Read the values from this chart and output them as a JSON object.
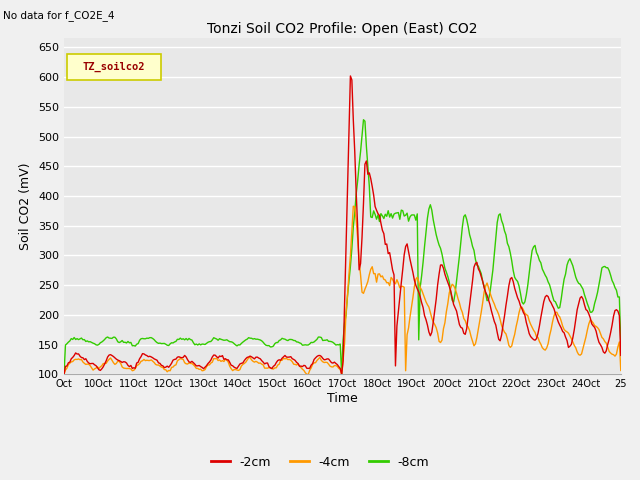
{
  "title": "Tonzi Soil CO2 Profile: Open (East) CO2",
  "subtitle": "No data for f_CO2E_4",
  "ylabel": "Soil CO2 (mV)",
  "xlabel": "Time",
  "ylim": [
    100,
    665
  ],
  "yticks": [
    100,
    150,
    200,
    250,
    300,
    350,
    400,
    450,
    500,
    550,
    600,
    650
  ],
  "xtick_labels": [
    "Oct",
    "10Oct",
    "11Oct",
    "12Oct",
    "13Oct",
    "14Oct",
    "15Oct",
    "16Oct",
    "17Oct",
    "18Oct",
    "19Oct",
    "20Oct",
    "21Oct",
    "22Oct",
    "23Oct",
    "24Oct",
    "25"
  ],
  "legend_box_label": "TZ_soilco2",
  "legend_box_color": "#ffffcc",
  "legend_box_edge": "#cccc00",
  "fig_bg_color": "#f0f0f0",
  "plot_bg_color": "#e8e8e8",
  "grid_color": "#ffffff",
  "colors": {
    "2cm": "#dd0000",
    "4cm": "#ff9900",
    "8cm": "#33cc00"
  },
  "line_width": 1.0
}
